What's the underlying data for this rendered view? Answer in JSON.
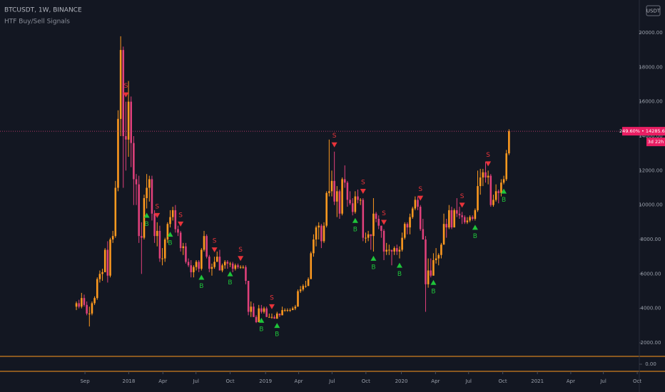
{
  "chart_data": {
    "type": "candlestick",
    "title": "BTCUSDT, 1W, BINANCE",
    "indicator": "HTF Buy/Sell Signals",
    "currency": "USDT",
    "up_color": "#ff9a1f",
    "down_color": "#e0407b",
    "ylim": [
      1297,
      21903
    ],
    "yticks": [
      {
        "value": 2000,
        "label": "2000.00"
      },
      {
        "value": 4000,
        "label": "4000.00"
      },
      {
        "value": 6000,
        "label": "6000.00"
      },
      {
        "value": 8000,
        "label": "8000.00"
      },
      {
        "value": 10000,
        "label": "10000.00"
      },
      {
        "value": 12000,
        "label": "12000.00"
      },
      {
        "value": 14000,
        "label": "14000.00"
      },
      {
        "value": 16000,
        "label": "16000.00"
      },
      {
        "value": 18000,
        "label": "18000.00"
      },
      {
        "value": 20000,
        "label": "20000.00"
      }
    ],
    "osc_yticks": [
      {
        "value": 0,
        "label": "0.00"
      }
    ],
    "xlim": [
      -29.3,
      216
    ],
    "xticks": [
      {
        "value": 3.3,
        "label": "Sep"
      },
      {
        "value": 20.1,
        "label": "2018"
      },
      {
        "value": 33.2,
        "label": "Apr"
      },
      {
        "value": 45.9,
        "label": "Jul"
      },
      {
        "value": 59.0,
        "label": "Oct"
      },
      {
        "value": 72.6,
        "label": "2019"
      },
      {
        "value": 85.3,
        "label": "Apr"
      },
      {
        "value": 98.1,
        "label": "Jul"
      },
      {
        "value": 111.1,
        "label": "Oct"
      },
      {
        "value": 124.7,
        "label": "2020"
      },
      {
        "value": 137.8,
        "label": "Apr"
      },
      {
        "value": 150.5,
        "label": "Jul"
      },
      {
        "value": 163.6,
        "label": "Oct"
      },
      {
        "value": 176.9,
        "label": "2021"
      },
      {
        "value": 189.7,
        "label": "Apr"
      },
      {
        "value": 202.2,
        "label": "Jul"
      },
      {
        "value": 215.2,
        "label": "Oct"
      }
    ],
    "last_price": {
      "value": 14285.64,
      "label": "249.60% • 14285.64"
    },
    "countdown": "3d 22h",
    "buy_signals": {
      "label": "B",
      "color": "#1fc43a",
      "indices": [
        27,
        36,
        48,
        59,
        71,
        77,
        107,
        114,
        124,
        137,
        153,
        164
      ]
    },
    "sell_signals": {
      "label": "S",
      "color": "#e8333a",
      "indices": [
        19,
        31,
        40,
        53,
        63,
        75,
        99,
        110,
        118,
        132,
        148,
        158
      ]
    },
    "ohlc": [
      [
        4100,
        4400,
        3900,
        4300
      ],
      [
        4300,
        4500,
        4000,
        4100
      ],
      [
        4100,
        4900,
        4000,
        4600
      ],
      [
        4600,
        4800,
        4100,
        4200
      ],
      [
        4200,
        4400,
        3600,
        3700
      ],
      [
        3700,
        4100,
        2950,
        3700
      ],
      [
        3700,
        4400,
        3600,
        4300
      ],
      [
        4300,
        4700,
        4200,
        4600
      ],
      [
        4600,
        5800,
        4500,
        5700
      ],
      [
        5700,
        6200,
        5500,
        6000
      ],
      [
        6000,
        6300,
        5600,
        6100
      ],
      [
        6100,
        7500,
        6100,
        7400
      ],
      [
        7400,
        7900,
        5500,
        5900
      ],
      [
        5900,
        8100,
        5800,
        8000
      ],
      [
        8000,
        8500,
        7800,
        8200
      ],
      [
        8200,
        11400,
        8100,
        11000
      ],
      [
        11000,
        15500,
        10800,
        15000
      ],
      [
        15000,
        19800,
        14000,
        19000
      ],
      [
        19000,
        19200,
        11000,
        14000
      ],
      [
        14000,
        16000,
        12000,
        13800
      ],
      [
        13800,
        17200,
        12800,
        16000
      ],
      [
        16000,
        16300,
        12200,
        13600
      ],
      [
        13600,
        14000,
        10000,
        11500
      ],
      [
        11500,
        11800,
        10000,
        11200
      ],
      [
        11200,
        11700,
        7800,
        8200
      ],
      [
        8200,
        9000,
        6000,
        8100
      ],
      [
        8100,
        10600,
        8000,
        10400
      ],
      [
        10400,
        11800,
        9800,
        11000
      ],
      [
        11000,
        11700,
        10200,
        11500
      ],
      [
        11500,
        11700,
        9100,
        9500
      ],
      [
        9500,
        9700,
        7800,
        8200
      ],
      [
        8200,
        9000,
        7600,
        8500
      ],
      [
        8500,
        8800,
        6700,
        6900
      ],
      [
        6900,
        7500,
        6500,
        6900
      ],
      [
        6900,
        8100,
        6700,
        8000
      ],
      [
        8000,
        9000,
        7800,
        8900
      ],
      [
        8900,
        9700,
        8700,
        9300
      ],
      [
        9300,
        9900,
        9100,
        9700
      ],
      [
        9700,
        10000,
        8400,
        8600
      ],
      [
        8600,
        8800,
        8200,
        8400
      ],
      [
        8400,
        8500,
        7300,
        7500
      ],
      [
        7500,
        7800,
        7100,
        7600
      ],
      [
        7600,
        7800,
        6600,
        6700
      ],
      [
        6700,
        6900,
        6400,
        6500
      ],
      [
        6500,
        6800,
        5800,
        6100
      ],
      [
        6100,
        6500,
        5800,
        6400
      ],
      [
        6400,
        6800,
        6200,
        6700
      ],
      [
        6700,
        6800,
        6100,
        6300
      ],
      [
        6300,
        7500,
        6200,
        7400
      ],
      [
        7400,
        8500,
        7300,
        8200
      ],
      [
        8200,
        8300,
        6900,
        7000
      ],
      [
        7000,
        7100,
        6100,
        6300
      ],
      [
        6300,
        6600,
        5900,
        6400
      ],
      [
        6400,
        7000,
        6300,
        6700
      ],
      [
        6700,
        7300,
        6700,
        7000
      ],
      [
        7000,
        7400,
        6200,
        6200
      ],
      [
        6200,
        6600,
        6100,
        6500
      ],
      [
        6500,
        6800,
        6300,
        6700
      ],
      [
        6700,
        6800,
        6300,
        6600
      ],
      [
        6600,
        6700,
        6400,
        6600
      ],
      [
        6600,
        6700,
        6100,
        6300
      ],
      [
        6300,
        6600,
        6200,
        6500
      ],
      [
        6500,
        6600,
        6300,
        6400
      ],
      [
        6400,
        6500,
        6300,
        6400
      ],
      [
        6400,
        6500,
        6300,
        6400
      ],
      [
        6400,
        6500,
        5400,
        5600
      ],
      [
        5600,
        5600,
        3600,
        3800
      ],
      [
        3800,
        4400,
        3500,
        4100
      ],
      [
        4100,
        4300,
        3500,
        3500
      ],
      [
        3500,
        3600,
        3150,
        3200
      ],
      [
        3200,
        4200,
        3200,
        4000
      ],
      [
        4000,
        4200,
        3700,
        3800
      ],
      [
        3800,
        4100,
        3700,
        4000
      ],
      [
        4000,
        4100,
        3500,
        3500
      ],
      [
        3500,
        3700,
        3500,
        3500
      ],
      [
        3500,
        3700,
        3400,
        3500
      ],
      [
        3500,
        3600,
        3400,
        3400
      ],
      [
        3400,
        3800,
        3400,
        3700
      ],
      [
        3700,
        3700,
        3500,
        3600
      ],
      [
        3600,
        4100,
        3600,
        3900
      ],
      [
        3900,
        4000,
        3800,
        3900
      ],
      [
        3900,
        4000,
        3800,
        3900
      ],
      [
        3900,
        4000,
        3800,
        3900
      ],
      [
        3900,
        4100,
        3900,
        4000
      ],
      [
        4000,
        4200,
        3900,
        4100
      ],
      [
        4100,
        5100,
        4100,
        5000
      ],
      [
        5000,
        5300,
        4900,
        5100
      ],
      [
        5100,
        5400,
        5000,
        5300
      ],
      [
        5300,
        5600,
        5200,
        5300
      ],
      [
        5300,
        5800,
        5300,
        5700
      ],
      [
        5700,
        7300,
        5700,
        7200
      ],
      [
        7200,
        8300,
        7000,
        8000
      ],
      [
        8000,
        8800,
        7600,
        8700
      ],
      [
        8700,
        9000,
        8000,
        8800
      ],
      [
        8800,
        8900,
        7500,
        7900
      ],
      [
        7900,
        9000,
        7800,
        8800
      ],
      [
        8800,
        10800,
        8700,
        10700
      ],
      [
        10700,
        13800,
        10500,
        10800
      ],
      [
        10800,
        12000,
        10500,
        11400
      ],
      [
        11400,
        13100,
        10000,
        10200
      ],
      [
        10200,
        11100,
        9300,
        10800
      ],
      [
        10800,
        10900,
        9200,
        9500
      ],
      [
        9500,
        11600,
        9400,
        11500
      ],
      [
        11500,
        12300,
        11000,
        11300
      ],
      [
        11300,
        11400,
        9900,
        10300
      ],
      [
        10300,
        10800,
        10000,
        10100
      ],
      [
        10100,
        10400,
        9400,
        9600
      ],
      [
        9600,
        10800,
        9500,
        10500
      ],
      [
        10500,
        10900,
        10100,
        10300
      ],
      [
        10300,
        10400,
        10000,
        10300
      ],
      [
        10300,
        10400,
        7900,
        8100
      ],
      [
        8100,
        8400,
        7800,
        8100
      ],
      [
        8100,
        8500,
        7900,
        8300
      ],
      [
        8300,
        8300,
        7400,
        8200
      ],
      [
        8200,
        10400,
        7300,
        9500
      ],
      [
        9500,
        9600,
        9000,
        9200
      ],
      [
        9200,
        9400,
        8600,
        8800
      ],
      [
        8800,
        8800,
        8100,
        8500
      ],
      [
        8500,
        8600,
        6800,
        7300
      ],
      [
        7300,
        7800,
        7100,
        7400
      ],
      [
        7400,
        7700,
        7100,
        7400
      ],
      [
        7400,
        7400,
        6500,
        7300
      ],
      [
        7300,
        7600,
        7100,
        7500
      ],
      [
        7500,
        7700,
        7100,
        7300
      ],
      [
        7300,
        7600,
        6900,
        7400
      ],
      [
        7400,
        8400,
        7300,
        8100
      ],
      [
        8100,
        9000,
        8000,
        8900
      ],
      [
        8900,
        9000,
        8300,
        8700
      ],
      [
        8700,
        9500,
        8300,
        9300
      ],
      [
        9300,
        9900,
        9200,
        9800
      ],
      [
        9800,
        10500,
        9700,
        10300
      ],
      [
        10300,
        10500,
        9700,
        9900
      ],
      [
        9900,
        10000,
        8500,
        8600
      ],
      [
        8600,
        9200,
        8000,
        8000
      ],
      [
        8000,
        8200,
        3800,
        5400
      ],
      [
        5400,
        6900,
        5200,
        6200
      ],
      [
        6200,
        6900,
        5800,
        5900
      ],
      [
        5900,
        7200,
        5900,
        6800
      ],
      [
        6800,
        7500,
        6600,
        6900
      ],
      [
        6900,
        7200,
        6500,
        7100
      ],
      [
        7100,
        7800,
        6900,
        7700
      ],
      [
        7700,
        9500,
        7700,
        8900
      ],
      [
        8900,
        9200,
        8100,
        8700
      ],
      [
        8700,
        10000,
        8600,
        9700
      ],
      [
        9700,
        9900,
        8600,
        8700
      ],
      [
        8700,
        9800,
        8700,
        9700
      ],
      [
        9700,
        10400,
        9300,
        9500
      ],
      [
        9500,
        9900,
        9200,
        9400
      ],
      [
        9400,
        9600,
        8900,
        9300
      ],
      [
        9300,
        9400,
        8900,
        9000
      ],
      [
        9000,
        9300,
        8900,
        9100
      ],
      [
        9100,
        9400,
        9000,
        9300
      ],
      [
        9300,
        9400,
        9100,
        9200
      ],
      [
        9200,
        9800,
        9100,
        9700
      ],
      [
        9700,
        12000,
        9600,
        11100
      ],
      [
        11100,
        12100,
        10600,
        11600
      ],
      [
        11600,
        12100,
        11100,
        11900
      ],
      [
        11900,
        12500,
        11300,
        11600
      ],
      [
        11600,
        12000,
        11200,
        11700
      ],
      [
        11700,
        11800,
        9900,
        10000
      ],
      [
        10000,
        10600,
        9900,
        10300
      ],
      [
        10300,
        11200,
        10200,
        10800
      ],
      [
        10800,
        10900,
        10100,
        10700
      ],
      [
        10700,
        11500,
        10500,
        11300
      ],
      [
        11300,
        11700,
        11200,
        11500
      ],
      [
        11500,
        13200,
        11400,
        13000
      ],
      [
        13000,
        14400,
        12900,
        14285.64
      ]
    ]
  }
}
